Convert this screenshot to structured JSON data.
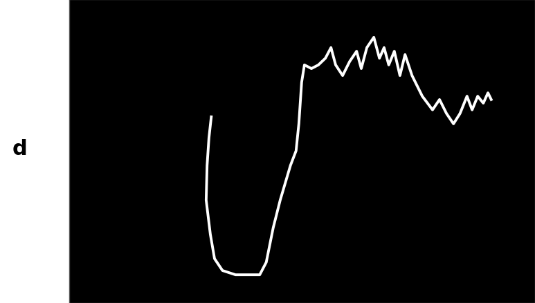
{
  "chart_data": {
    "type": "line",
    "panel_label": "d",
    "x": [
      30.5,
      30.0,
      29.6,
      29.4,
      30.3,
      31.2,
      32.9,
      35.7,
      40.9,
      42.3,
      43.8,
      45.3,
      47.5,
      48.7,
      49.3,
      49.9,
      50.5,
      52.0,
      53.5,
      55.0,
      56.2,
      57.2,
      58.7,
      60.2,
      61.7,
      62.7,
      63.9,
      65.4,
      66.6,
      67.6,
      68.6,
      69.8,
      71.0,
      72.1,
      73.6,
      75.8,
      78.0,
      79.5,
      81.0,
      82.5,
      83.9,
      85.4,
      86.5,
      87.7,
      88.9,
      89.9,
      90.6
    ],
    "values": [
      61.3,
      54.4,
      45.3,
      33.9,
      22.6,
      14.6,
      10.7,
      9.3,
      9.3,
      13.4,
      24.8,
      33.9,
      45.3,
      50.1,
      59.0,
      72.7,
      78.4,
      77.2,
      78.4,
      80.6,
      84.1,
      78.4,
      74.9,
      79.5,
      82.9,
      77.2,
      84.1,
      87.5,
      80.6,
      84.1,
      78.4,
      82.9,
      74.9,
      81.8,
      74.9,
      68.1,
      63.6,
      67.0,
      62.4,
      59.0,
      62.4,
      68.1,
      63.6,
      68.1,
      65.8,
      69.2,
      67.0
    ],
    "color": "#ffffff",
    "line_style": "solid",
    "xlim": [
      0,
      100
    ],
    "ylim": [
      0,
      100
    ],
    "xticks": [],
    "yticks": [],
    "grid": false,
    "tick_labels": false
  }
}
